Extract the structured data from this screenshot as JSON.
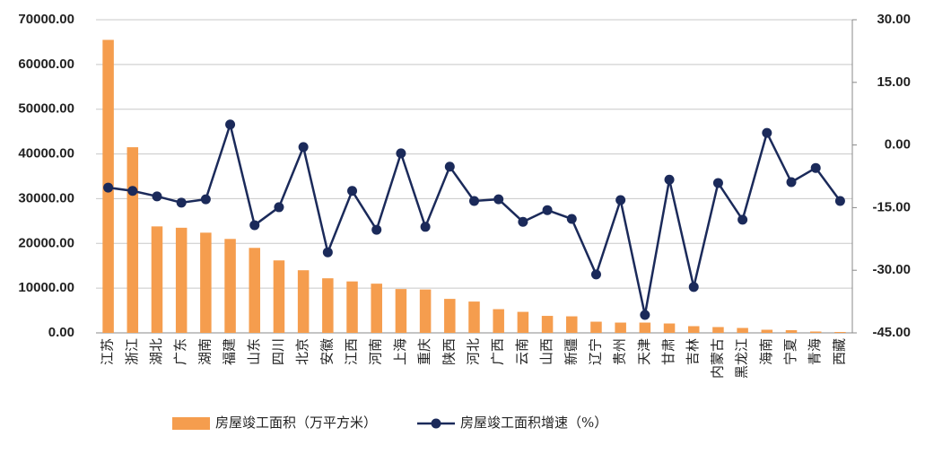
{
  "chart_data": {
    "type": "bar_line",
    "categories": [
      "江苏",
      "浙江",
      "湖北",
      "广东",
      "湖南",
      "福建",
      "山东",
      "四川",
      "北京",
      "安徽",
      "江西",
      "河南",
      "上海",
      "重庆",
      "陕西",
      "河北",
      "广西",
      "云南",
      "山西",
      "新疆",
      "辽宁",
      "贵州",
      "天津",
      "甘肃",
      "吉林",
      "内蒙古",
      "黑龙江",
      "海南",
      "宁夏",
      "青海",
      "西藏"
    ],
    "series": [
      {
        "name": "房屋竣工面积（万平方米）",
        "type": "bar",
        "color": "#f59d4e",
        "values": [
          65500,
          41500,
          23800,
          23500,
          22400,
          21000,
          19000,
          16200,
          14000,
          12200,
          11500,
          11000,
          9800,
          9700,
          7600,
          7000,
          5300,
          4700,
          3800,
          3700,
          2500,
          2300,
          2300,
          2100,
          1500,
          1300,
          1100,
          700,
          600,
          300,
          200
        ]
      },
      {
        "name": "房屋竣工面积增速（%）",
        "type": "line",
        "axis": "y2",
        "color": "#1b2a5a",
        "values": [
          -10.2,
          -11.0,
          -12.3,
          -13.8,
          -13.0,
          4.9,
          -19.2,
          -14.9,
          -0.5,
          -25.7,
          -11.0,
          -20.3,
          -2.0,
          -19.6,
          -5.2,
          -13.4,
          -13.0,
          -18.4,
          -15.6,
          -17.7,
          -31.0,
          -13.2,
          -40.7,
          -8.3,
          -34.0,
          -9.1,
          -17.9,
          2.9,
          -8.9,
          -5.5,
          -13.4
        ]
      }
    ],
    "ylim": [
      0,
      70000
    ],
    "yticks": [
      {
        "value": 0,
        "label": "0.00"
      },
      {
        "value": 10000,
        "label": "10000.00"
      },
      {
        "value": 20000,
        "label": "20000.00"
      },
      {
        "value": 30000,
        "label": "30000.00"
      },
      {
        "value": 40000,
        "label": "40000.00"
      },
      {
        "value": 50000,
        "label": "50000.00"
      },
      {
        "value": 60000,
        "label": "60000.00"
      },
      {
        "value": 70000,
        "label": "70000.00"
      }
    ],
    "y2lim": [
      -45,
      30
    ],
    "y2ticks": [
      {
        "value": -45,
        "label": "-45.00"
      },
      {
        "value": -30,
        "label": "-30.00"
      },
      {
        "value": -15,
        "label": "-15.00"
      },
      {
        "value": 0,
        "label": "0.00"
      },
      {
        "value": 15,
        "label": "15.00"
      },
      {
        "value": 30,
        "label": "30.00"
      }
    ],
    "grid": true
  }
}
